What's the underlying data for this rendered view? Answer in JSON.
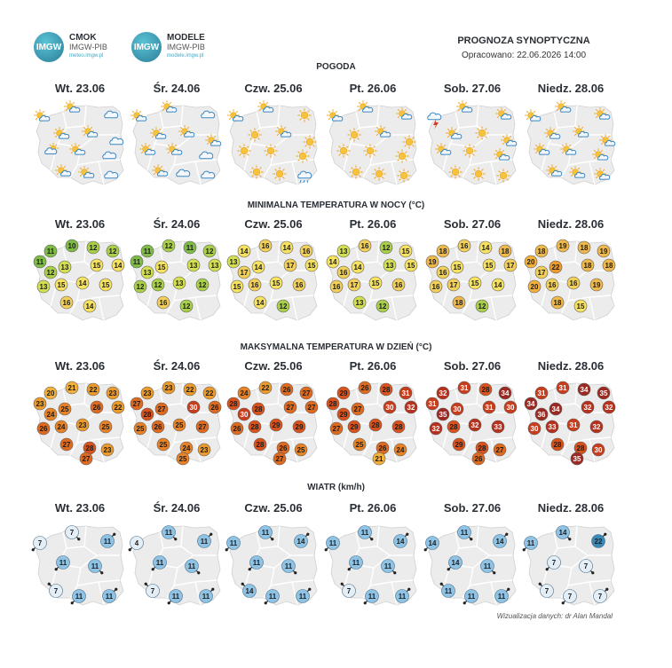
{
  "logos": [
    {
      "badge": "IMGW",
      "name": "CMOK",
      "org": "IMGW-PIB",
      "url": "meteo.imgw.pl"
    },
    {
      "badge": "IMGW",
      "name": "MODELE",
      "org": "IMGW-PIB",
      "url": "modele.imgw.pl"
    }
  ],
  "header": {
    "title": "PROGNOZA SYNOPTYCZNA",
    "issued": "Opracowano: 22.06.2026 14:00"
  },
  "days": [
    "Wt. 23.06",
    "Śr. 24.06",
    "Czw. 25.06",
    "Pt. 26.06",
    "Sob. 27.06",
    "Niedz. 28.06"
  ],
  "sections": {
    "weather": "POGODA",
    "tmin": "MINIMALNA TEMPERATURA W NOCY (°C)",
    "tmax": "MAKSYMALNA TEMPERATURA W DZIEŃ (°C)",
    "wind": "WIATR (km/h)"
  },
  "weather_icons": [
    [
      "sun-cloud",
      "sun-cloud",
      "cloud",
      "sun-cloud",
      "sun-cloud",
      "cloud",
      "cloud-sun",
      "sun-cloud",
      "cloud",
      "sun-cloud",
      "sun-cloud",
      "cloud"
    ],
    [
      "sun-cloud",
      "sun-cloud",
      "cloud",
      "sun-cloud",
      "sun-cloud",
      "sun-cloud",
      "sun-cloud",
      "sun-cloud",
      "cloud",
      "sun-cloud",
      "cloud",
      "cloud"
    ],
    [
      "sun-cloud",
      "sun-cloud",
      "sun",
      "sun",
      "sun-cloud",
      "sun",
      "sun",
      "sun",
      "sun",
      "sun",
      "sun",
      "rain-cloud"
    ],
    [
      "sun-cloud",
      "sun-cloud",
      "sun-cloud",
      "sun",
      "sun-cloud",
      "sun",
      "sun",
      "sun",
      "sun",
      "sun",
      "sun",
      "sun"
    ],
    [
      "storm",
      "sun-cloud",
      "sun-cloud",
      "sun-cloud",
      "sun",
      "sun-cloud",
      "sun-cloud",
      "sun",
      "sun-cloud",
      "sun",
      "sun",
      "sun"
    ],
    [
      "sun-cloud",
      "sun-cloud",
      "sun-cloud",
      "sun-cloud",
      "sun-cloud",
      "sun-cloud",
      "sun-cloud",
      "sun-cloud",
      "sun-cloud",
      "sun-cloud",
      "sun-cloud",
      "sun-cloud"
    ]
  ],
  "tmin": [
    [
      11,
      10,
      12,
      12,
      11,
      14,
      12,
      13,
      15,
      13,
      15,
      14,
      15,
      16,
      14
    ],
    [
      11,
      12,
      11,
      12,
      11,
      13,
      13,
      15,
      13,
      12,
      12,
      13,
      12,
      16,
      12
    ],
    [
      14,
      16,
      14,
      16,
      13,
      15,
      17,
      14,
      17,
      15,
      16,
      15,
      16,
      14,
      12
    ],
    [
      13,
      16,
      12,
      15,
      14,
      15,
      16,
      14,
      13,
      16,
      17,
      15,
      16,
      13,
      12
    ],
    [
      18,
      16,
      14,
      18,
      19,
      17,
      16,
      15,
      15,
      16,
      17,
      15,
      14,
      18,
      12
    ],
    [
      18,
      19,
      18,
      19,
      20,
      18,
      17,
      22,
      18,
      20,
      16,
      16,
      19,
      18,
      15
    ]
  ],
  "tmax": [
    [
      20,
      21,
      22,
      23,
      23,
      22,
      24,
      25,
      26,
      26,
      24,
      23,
      25,
      27,
      28,
      23,
      27
    ],
    [
      23,
      23,
      22,
      22,
      27,
      26,
      28,
      27,
      30,
      25,
      26,
      25,
      27,
      25,
      24,
      23,
      25
    ],
    [
      24,
      22,
      26,
      27,
      28,
      27,
      30,
      28,
      27,
      26,
      28,
      29,
      29,
      28,
      26,
      25,
      27
    ],
    [
      29,
      26,
      28,
      31,
      28,
      32,
      29,
      27,
      30,
      27,
      29,
      28,
      28,
      25,
      26,
      24,
      21
    ],
    [
      32,
      31,
      28,
      34,
      31,
      30,
      35,
      30,
      31,
      32,
      28,
      32,
      33,
      29,
      28,
      27,
      26
    ],
    [
      31,
      31,
      34,
      35,
      34,
      32,
      36,
      34,
      32,
      30,
      33,
      31,
      32,
      28,
      28,
      30,
      35
    ]
  ],
  "wind": [
    [
      7,
      7,
      11,
      11,
      11,
      7,
      11,
      11
    ],
    [
      4,
      11,
      11,
      11,
      11,
      7,
      11,
      11
    ],
    [
      11,
      11,
      14,
      11,
      11,
      14,
      11,
      11
    ],
    [
      11,
      11,
      14,
      11,
      11,
      7,
      11,
      11
    ],
    [
      14,
      11,
      14,
      14,
      11,
      11,
      11,
      11
    ],
    [
      11,
      14,
      22,
      7,
      7,
      7,
      7,
      7
    ]
  ],
  "credit": "Wizualizacja danych: dr Alan Mandal"
}
